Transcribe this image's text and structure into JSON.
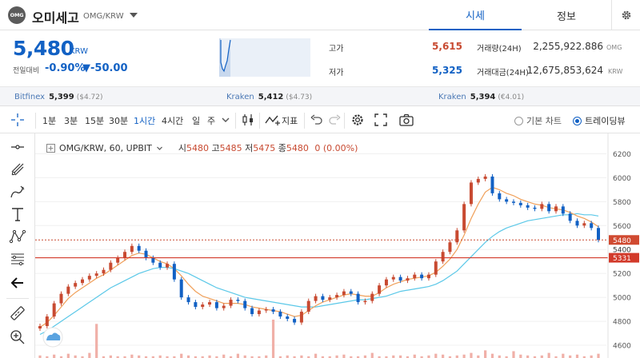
{
  "header": {
    "logo_text": "OMG",
    "coin_name": "오미세고",
    "pair": "OMG/KRW",
    "tabs": [
      {
        "label": "시세"
      },
      {
        "label": "정보"
      }
    ]
  },
  "price": {
    "value": "5,480",
    "currency": "KRW",
    "change_label": "전일대비",
    "change_pct": "-0.90%",
    "change_abs": "▼-50.00"
  },
  "stats": {
    "high_label": "고가",
    "high": "5,615",
    "low_label": "저가",
    "low": "5,325",
    "volume_label": "거래량(24H)",
    "volume": "2,255,922.886",
    "volume_unit": "OMG",
    "amount_label": "거래대금(24H)",
    "amount": "12,675,853,624",
    "amount_unit": "KRW"
  },
  "exchanges": [
    {
      "name": "Bitfinex",
      "price": "5,399",
      "usd": "($4.72)"
    },
    {
      "name": "Kraken",
      "price": "5,412",
      "usd": "($4.73)"
    },
    {
      "name": "Kraken",
      "price": "5,394",
      "usd": "(€4.01)"
    }
  ],
  "toolbar": {
    "intervals": [
      "1분",
      "3분",
      "15분",
      "30분",
      "1시간",
      "4시간",
      "일",
      "주"
    ],
    "active_interval": "1시간",
    "indicators_label": "지표",
    "chart_types": [
      "기본 차트",
      "트레이딩뷰"
    ],
    "active_chart_type": "트레이딩뷰"
  },
  "legend": {
    "symbol": "OMG/KRW, 60, UPBIT",
    "open_label": "시",
    "open": "5480",
    "high_label": "고",
    "high": "5485",
    "low_label": "저",
    "low": "5475",
    "close_label": "종",
    "close": "5480",
    "change": "0 (0.00%)"
  },
  "price_axis": {
    "ticks": [
      "6200",
      "6000",
      "5800",
      "5600",
      "5400",
      "5200",
      "5000",
      "4800",
      "4600"
    ],
    "current_tag": "5480",
    "tag2": "5400",
    "line_tag": "5331"
  },
  "colors": {
    "up": "#c84a31",
    "down": "#1261c4",
    "ma_short": "#f0a05a",
    "ma_long": "#5bc8e8",
    "volume": "#f0b0a8",
    "accent": "#1261c4"
  },
  "chart_data": {
    "type": "candlestick",
    "symbol": "OMG/KRW",
    "interval": "60",
    "ylim": [
      4580,
      6290
    ],
    "hline": 5331,
    "current": 5480,
    "close_series": [
      4760,
      4840,
      4950,
      5030,
      5090,
      5120,
      5150,
      5180,
      5200,
      5230,
      5290,
      5330,
      5380,
      5430,
      5390,
      5330,
      5290,
      5250,
      5280,
      5150,
      5000,
      4960,
      4920,
      4940,
      4960,
      4910,
      4930,
      4980,
      4970,
      4910,
      4860,
      4890,
      4900,
      4880,
      4840,
      4820,
      4790,
      4880,
      4970,
      5010,
      4980,
      5000,
      5020,
      5050,
      5030,
      4960,
      4970,
      5030,
      5100,
      5150,
      5170,
      5140,
      5160,
      5190,
      5160,
      5190,
      5300,
      5380,
      5460,
      5560,
      5780,
      5960,
      5990,
      6010,
      5870,
      5820,
      5800,
      5790,
      5770,
      5750,
      5740,
      5780,
      5720,
      5760,
      5700,
      5640,
      5600,
      5620,
      5580,
      5480
    ],
    "ma_short_series": [
      4750,
      4790,
      4850,
      4920,
      4990,
      5040,
      5080,
      5120,
      5160,
      5190,
      5230,
      5270,
      5310,
      5350,
      5370,
      5360,
      5330,
      5300,
      5280,
      5240,
      5180,
      5110,
      5050,
      5010,
      4990,
      4970,
      4950,
      4950,
      4950,
      4940,
      4920,
      4910,
      4900,
      4890,
      4880,
      4860,
      4840,
      4850,
      4890,
      4930,
      4960,
      4980,
      5000,
      5020,
      5030,
      5020,
      5010,
      5010,
      5040,
      5080,
      5110,
      5130,
      5150,
      5160,
      5170,
      5180,
      5210,
      5260,
      5320,
      5400,
      5520,
      5660,
      5780,
      5880,
      5920,
      5900,
      5870,
      5850,
      5820,
      5800,
      5780,
      5770,
      5750,
      5740,
      5730,
      5710,
      5680,
      5660,
      5630,
      5590
    ],
    "ma_long_series": [
      4690,
      4720,
      4760,
      4800,
      4840,
      4880,
      4920,
      4960,
      5000,
      5040,
      5080,
      5110,
      5140,
      5170,
      5200,
      5220,
      5240,
      5250,
      5250,
      5240,
      5220,
      5200,
      5170,
      5140,
      5110,
      5080,
      5060,
      5040,
      5020,
      5000,
      4990,
      4980,
      4970,
      4960,
      4950,
      4940,
      4930,
      4920,
      4920,
      4920,
      4930,
      4940,
      4950,
      4960,
      4970,
      4980,
      4980,
      4990,
      5000,
      5010,
      5030,
      5050,
      5060,
      5070,
      5080,
      5090,
      5110,
      5140,
      5180,
      5220,
      5280,
      5340,
      5400,
      5460,
      5510,
      5550,
      5580,
      5600,
      5620,
      5640,
      5650,
      5660,
      5670,
      5680,
      5690,
      5690,
      5700,
      5690,
      5690,
      5680
    ],
    "volume_series": [
      3,
      2,
      4,
      2,
      5,
      3,
      2,
      6,
      40,
      2,
      3,
      2,
      2,
      4,
      3,
      2,
      2,
      3,
      2,
      2,
      5,
      3,
      2,
      2,
      3,
      2,
      4,
      2,
      5,
      3,
      2,
      2,
      3,
      45,
      2,
      3,
      2,
      3,
      2,
      5,
      2,
      2,
      3,
      4,
      2,
      2,
      3,
      6,
      2,
      2,
      3,
      3,
      2,
      4,
      2,
      3,
      5,
      4,
      2,
      3,
      4,
      6,
      3,
      9,
      5,
      3,
      2,
      8,
      4,
      3,
      2,
      3,
      6,
      2,
      5,
      3,
      4,
      2,
      3,
      5
    ]
  }
}
